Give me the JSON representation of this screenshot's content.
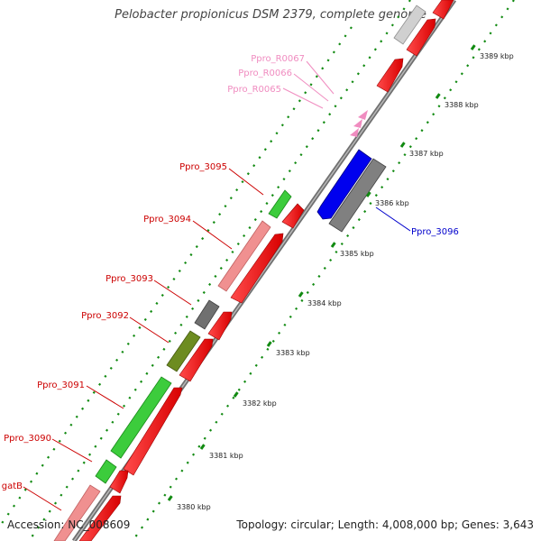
{
  "title": "Pelobacter propionicus DSM 2379, complete genome",
  "footer": {
    "accession": "Accession: NC_008609",
    "summary": "Topology: circular; Length: 4,008,000 bp; Genes: 3,643"
  },
  "colors": {
    "red_label": "#cc0000",
    "pink_label": "#f08cc0",
    "blue_label": "#0000cc",
    "backbone": "#808080",
    "tick": "#008000"
  },
  "kbp_ticks": [
    "3380 kbp",
    "3381 kbp",
    "3382 kbp",
    "3383 kbp",
    "3384 kbp",
    "3385 kbp",
    "3386 kbp",
    "3387 kbp",
    "3388 kbp",
    "3389 kbp"
  ],
  "gene_labels": [
    {
      "text": "Ppro_R0067",
      "color": "pink"
    },
    {
      "text": "Ppro_R0066",
      "color": "pink"
    },
    {
      "text": "Ppro_R0065",
      "color": "pink"
    },
    {
      "text": "Ppro_3095",
      "color": "red"
    },
    {
      "text": "Ppro_3094",
      "color": "red"
    },
    {
      "text": "Ppro_3093",
      "color": "red"
    },
    {
      "text": "Ppro_3092",
      "color": "red"
    },
    {
      "text": "Ppro_3091",
      "color": "red"
    },
    {
      "text": "Ppro_3090",
      "color": "red"
    },
    {
      "text": "gatB",
      "color": "red"
    },
    {
      "text": "Ppro_3096",
      "color": "blue"
    }
  ]
}
